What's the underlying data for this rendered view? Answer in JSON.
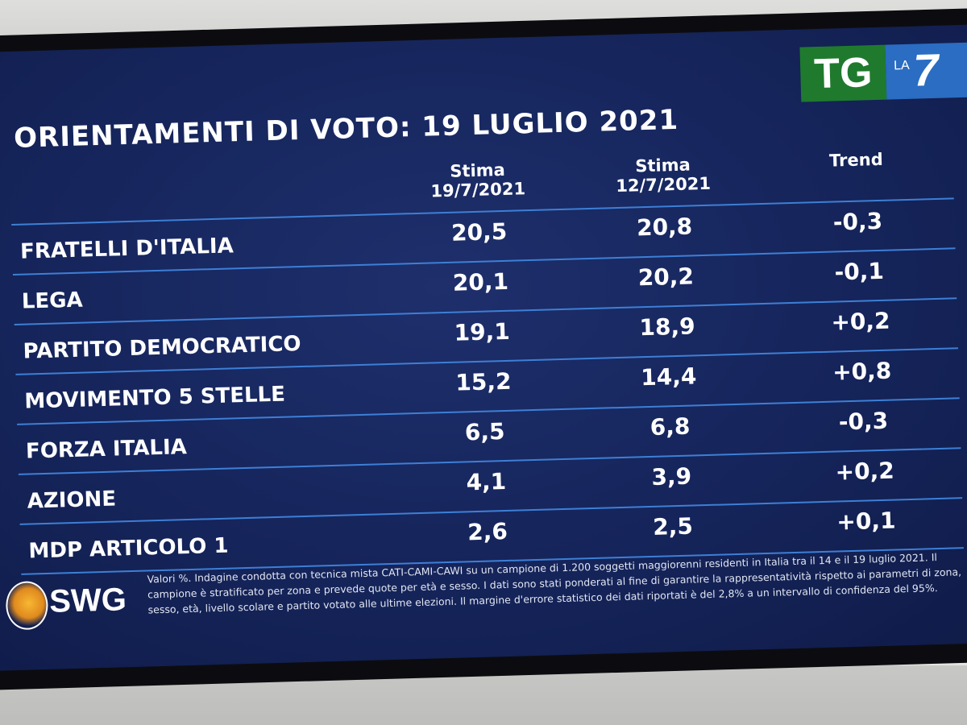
{
  "chart_data": {
    "type": "table",
    "title": "ORIENTAMENTI DI VOTO: 19 LUGLIO 2021",
    "columns": [
      "Stima 19/7/2021",
      "Stima 12/7/2021",
      "Trend"
    ],
    "column_headers": [
      {
        "line1": "Stima",
        "line2": "19/7/2021"
      },
      {
        "line1": "Stima",
        "line2": "12/7/2021"
      },
      {
        "line1": "Trend",
        "line2": ""
      }
    ],
    "rows": [
      {
        "party": "FRATELLI D'ITALIA",
        "current": "20,5",
        "previous": "20,8",
        "trend": "-0,3"
      },
      {
        "party": "LEGA",
        "current": "20,1",
        "previous": "20,2",
        "trend": "-0,1"
      },
      {
        "party": "PARTITO DEMOCRATICO",
        "current": "19,1",
        "previous": "18,9",
        "trend": "+0,2"
      },
      {
        "party": "MOVIMENTO 5 STELLE",
        "current": "15,2",
        "previous": "14,4",
        "trend": "+0,8"
      },
      {
        "party": "FORZA ITALIA",
        "current": "6,5",
        "previous": "6,8",
        "trend": "-0,3"
      },
      {
        "party": "AZIONE",
        "current": "4,1",
        "previous": "3,9",
        "trend": "+0,2"
      },
      {
        "party": "MDP ARTICOLO 1",
        "current": "2,6",
        "previous": "2,5",
        "trend": "+0,1"
      }
    ]
  },
  "branding": {
    "tg_logo": "TG",
    "la7_small": "LA",
    "la7_number": "7",
    "pollster": "SWG",
    "pollster_icon": "globe-icon",
    "tg_color": "#1f7a2e",
    "la7_color": "#2a6dc2"
  },
  "footnote": "Valori %. Indagine condotta con tecnica mista CATI-CAMI-CAWI su un campione di 1.200 soggetti maggiorenni residenti in Italia tra il 14 e il 19 luglio 2021. Il campione è stratificato per zona e prevede quote per età e sesso. I dati sono stati ponderati al fine di garantire la rappresentatività rispetto ai parametri di zona, sesso, età, livello scolare e partito votato alle ultime elezioni. Il margine d'errore statistico dei dati riportati è del 2,8% a un intervallo di confidenza del 95%.",
  "colors": {
    "background": "#15245a",
    "row_divider": "#3d7fd6",
    "text": "#ffffff"
  }
}
